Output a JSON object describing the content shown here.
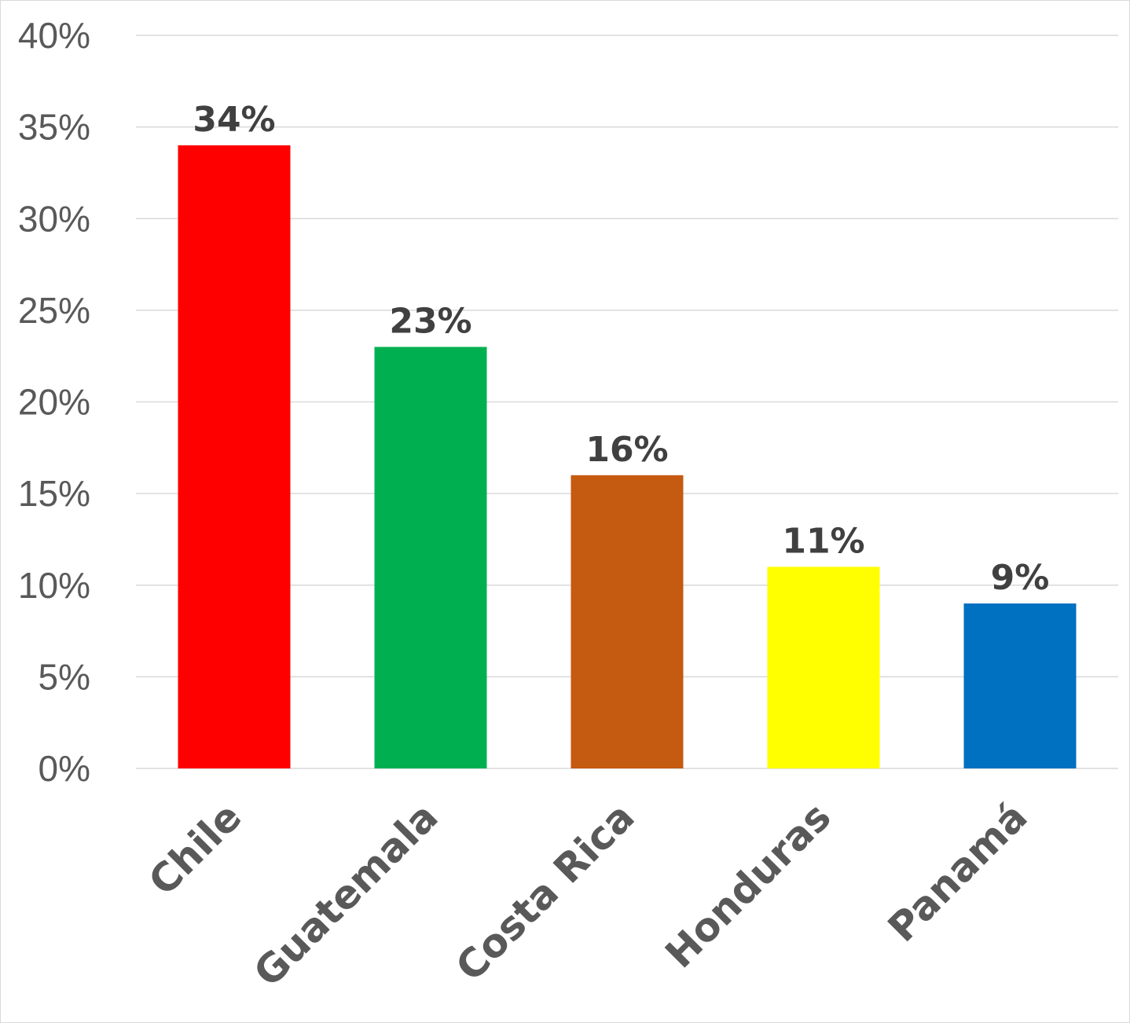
{
  "chart_data": {
    "type": "bar",
    "title": "",
    "xlabel": "",
    "ylabel": "",
    "categories": [
      "Chile",
      "Guatemala",
      "Costa Rica",
      "Honduras",
      "Panamá"
    ],
    "values": [
      34,
      23,
      16,
      11,
      9
    ],
    "value_labels": [
      "34%",
      "23%",
      "16%",
      "11%",
      "9%"
    ],
    "colors": [
      "#ff0000",
      "#00b050",
      "#c55a11",
      "#ffff00",
      "#0070c0"
    ],
    "ylim": [
      0,
      40
    ],
    "y_ticks": [
      0,
      5,
      10,
      15,
      20,
      25,
      30,
      35,
      40
    ],
    "y_tick_labels": [
      "0%",
      "5%",
      "10%",
      "15%",
      "20%",
      "25%",
      "30%",
      "35%",
      "40%"
    ],
    "grid": true,
    "legend": "none"
  }
}
